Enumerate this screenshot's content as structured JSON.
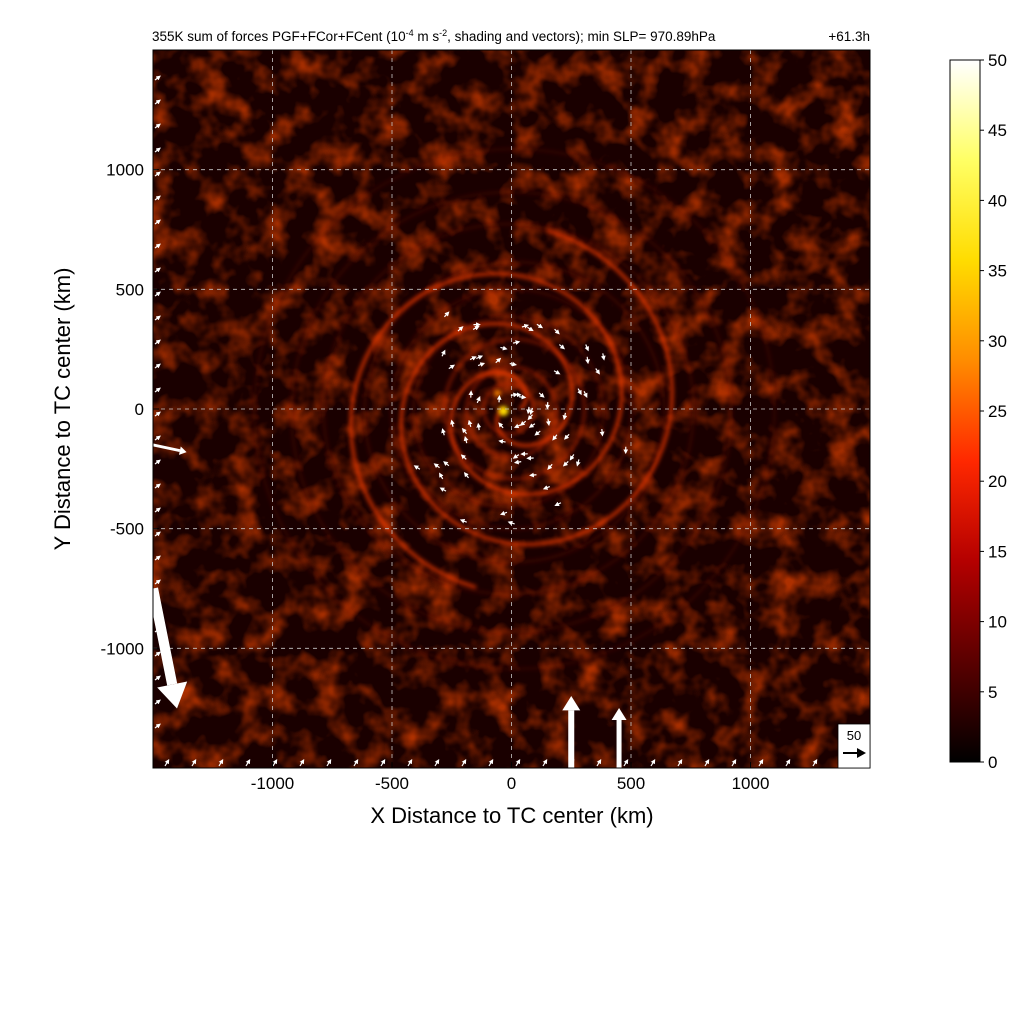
{
  "chart_data": {
    "type": "heatmap",
    "title_prefix": "355K sum of forces PGF+FCor+FCent (10",
    "title_sup1": "-4",
    "title_mid": " m s",
    "title_sup2": "-2",
    "title_suffix": ", shading and vectors); min SLP= 970.89hPa",
    "time_label": "+61.3h",
    "xlabel": "X Distance to TC center (km)",
    "ylabel": "Y Distance to TC center (km)",
    "xlim": [
      -1500,
      1500
    ],
    "ylim": [
      -1500,
      1500
    ],
    "xticks": [
      -1000,
      -500,
      0,
      500,
      1000
    ],
    "yticks": [
      -1000,
      -500,
      0,
      500,
      1000
    ],
    "xtick_labels": [
      "-1000",
      "-500",
      "0",
      "500",
      "1000"
    ],
    "ytick_labels": [
      "-1000",
      "-500",
      "0",
      "500",
      "1000"
    ],
    "grid": true,
    "colorbar": {
      "min": 0,
      "max": 50,
      "ticks": [
        0,
        5,
        10,
        15,
        20,
        25,
        30,
        35,
        40,
        45,
        50
      ],
      "tick_labels": [
        "0",
        "5",
        "10",
        "15",
        "20",
        "25",
        "30",
        "35",
        "40",
        "45",
        "50"
      ],
      "colors": [
        "#000000",
        "#5a0000",
        "#b40000",
        "#ff2800",
        "#ff8c00",
        "#ffdc00",
        "#ffff64",
        "#ffffff"
      ]
    },
    "reference_vector": {
      "magnitude": 50,
      "label": "50"
    },
    "description_values": {
      "spiral_center": [
        0,
        0
      ],
      "max_field_value_near_center": 32
    },
    "large_vectors": [
      {
        "x": -1500,
        "y": -750,
        "u": 10,
        "v": -50
      },
      {
        "x": 250,
        "y": -1500,
        "u": 0,
        "v": 30
      },
      {
        "x": 450,
        "y": -1500,
        "u": 0,
        "v": 25
      },
      {
        "x": -1500,
        "y": -150,
        "u": 14,
        "v": -3
      }
    ],
    "colors": {
      "vector": "#ffffff",
      "grid": "#c8c8c8"
    }
  }
}
